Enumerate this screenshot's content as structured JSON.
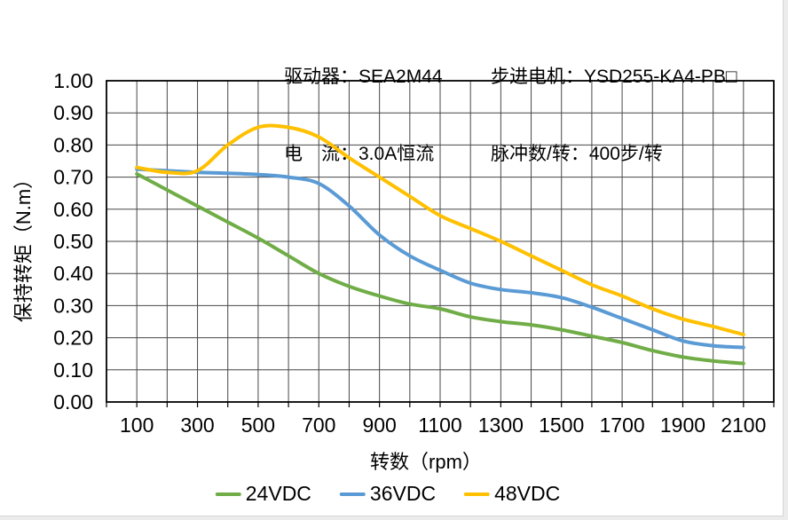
{
  "header": {
    "driver": "驱动器：SEA2M44",
    "current": "电　流：3.0A恒流",
    "motor": "步进电机：YSD255-KA4-PB□",
    "pulses": "脉冲数/转：400步/转"
  },
  "chart_data": {
    "type": "line",
    "title": "",
    "xlabel": "转数（rpm）",
    "ylabel": "保持转矩（N.m）",
    "xlim": [
      0,
      2200
    ],
    "ylim": [
      0.0,
      1.0
    ],
    "grid": true,
    "grid_x_step_rpm": 100,
    "grid_y_step_nm": 0.1,
    "legend_position": "bottom",
    "x": [
      100,
      200,
      300,
      400,
      500,
      600,
      700,
      800,
      900,
      1000,
      1100,
      1200,
      1300,
      1400,
      1500,
      1600,
      1700,
      1800,
      1900,
      2000,
      2100
    ],
    "x_tick_values": [
      100,
      300,
      500,
      700,
      900,
      1100,
      1300,
      1500,
      1700,
      1900,
      2100
    ],
    "x_tick_labels": [
      "100",
      "300",
      "500",
      "700",
      "900",
      "1100",
      "1300",
      "1500",
      "1700",
      "1900",
      "2100"
    ],
    "y_tick_values": [
      0.0,
      0.1,
      0.2,
      0.3,
      0.4,
      0.5,
      0.6,
      0.7,
      0.8,
      0.9,
      1.0
    ],
    "y_tick_labels": [
      "0.00",
      "0.10",
      "0.20",
      "0.30",
      "0.40",
      "0.50",
      "0.60",
      "0.70",
      "0.80",
      "0.90",
      "1.00"
    ],
    "series": [
      {
        "name": "24VDC",
        "color": "#70AD47",
        "values": [
          0.71,
          0.66,
          0.61,
          0.56,
          0.51,
          0.455,
          0.4,
          0.36,
          0.33,
          0.305,
          0.29,
          0.265,
          0.25,
          0.24,
          0.225,
          0.205,
          0.185,
          0.16,
          0.14,
          0.128,
          0.12
        ]
      },
      {
        "name": "36VDC",
        "color": "#5B9BD5",
        "values": [
          0.725,
          0.72,
          0.715,
          0.712,
          0.708,
          0.7,
          0.68,
          0.61,
          0.52,
          0.455,
          0.41,
          0.37,
          0.35,
          0.34,
          0.325,
          0.295,
          0.26,
          0.225,
          0.19,
          0.175,
          0.17
        ]
      },
      {
        "name": "48VDC",
        "color": "#FFC000",
        "values": [
          0.73,
          0.715,
          0.72,
          0.8,
          0.855,
          0.855,
          0.825,
          0.76,
          0.7,
          0.64,
          0.58,
          0.54,
          0.5,
          0.455,
          0.41,
          0.365,
          0.33,
          0.29,
          0.258,
          0.235,
          0.21
        ]
      }
    ],
    "colors": {
      "grid": "#474747",
      "axis_border": "#000000",
      "text": "#000000",
      "background": "#ffffff"
    }
  }
}
